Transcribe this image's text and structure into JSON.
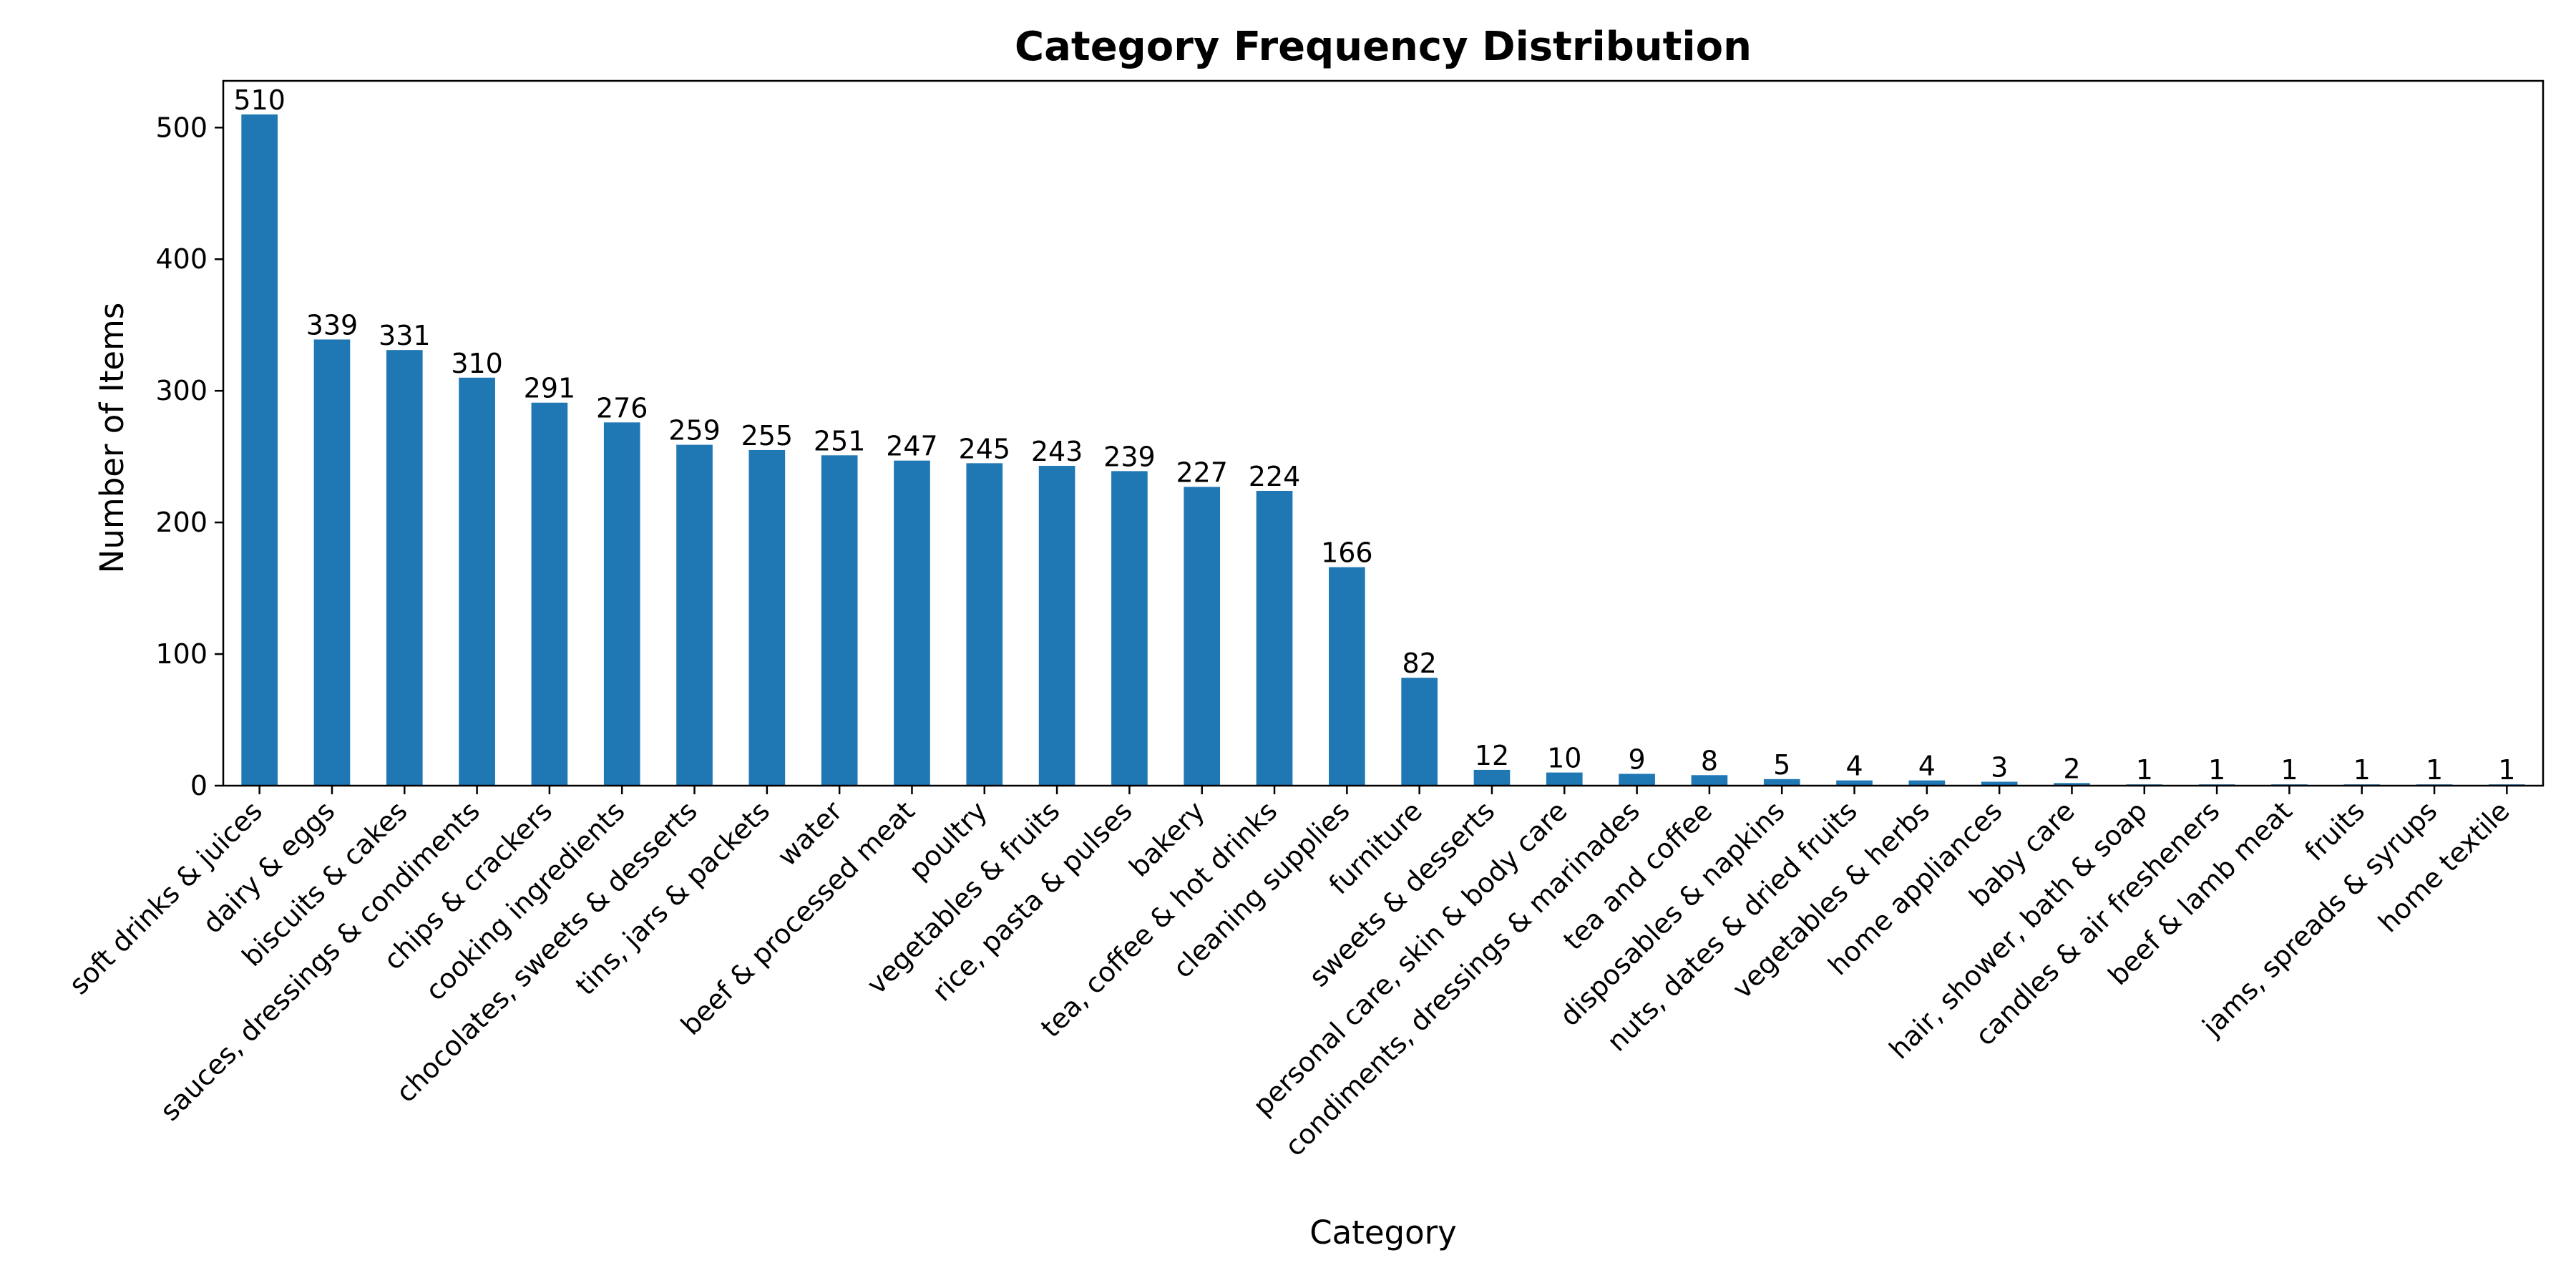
{
  "chart_data": {
    "type": "bar",
    "title": "Category Frequency Distribution",
    "xlabel": "Category",
    "ylabel": "Number of Items",
    "ylim": [
      0,
      535.5
    ],
    "yticks": [
      "0",
      "100",
      "200",
      "300",
      "400",
      "500"
    ],
    "grid": false,
    "legend": "none",
    "bar_color": "#1f77b4",
    "categories": [
      "soft drinks & juices",
      "dairy & eggs",
      "biscuits & cakes",
      "sauces, dressings & condiments",
      "chips & crackers",
      "cooking ingredients",
      "chocolates, sweets & desserts",
      "tins, jars & packets",
      "water",
      "beef & processed meat",
      "poultry",
      "vegetables & fruits",
      "rice, pasta & pulses",
      "bakery",
      "tea, coffee & hot drinks",
      "cleaning supplies",
      "furniture",
      "sweets & desserts",
      "personal care, skin & body care",
      "condiments, dressings & marinades",
      "tea and coffee",
      "disposables & napkins",
      "nuts, dates & dried fruits",
      "vegetables & herbs",
      "home appliances",
      "baby care",
      "hair, shower, bath & soap",
      "candles & air fresheners",
      "beef & lamb meat",
      "fruits",
      "jams, spreads & syrups",
      "home textile"
    ],
    "values": [
      510,
      339,
      331,
      310,
      291,
      276,
      259,
      255,
      251,
      247,
      245,
      243,
      239,
      227,
      224,
      166,
      82,
      12,
      10,
      9,
      8,
      5,
      4,
      4,
      3,
      2,
      1,
      1,
      1,
      1,
      1,
      1
    ],
    "data_labels": [
      "510",
      "339",
      "331",
      "310",
      "291",
      "276",
      "259",
      "255",
      "251",
      "247",
      "245",
      "243",
      "239",
      "227",
      "224",
      "166",
      "82",
      "12",
      "10",
      "9",
      "8",
      "5",
      "4",
      "4",
      "3",
      "2",
      "1",
      "1",
      "1",
      "1",
      "1",
      "1"
    ]
  }
}
